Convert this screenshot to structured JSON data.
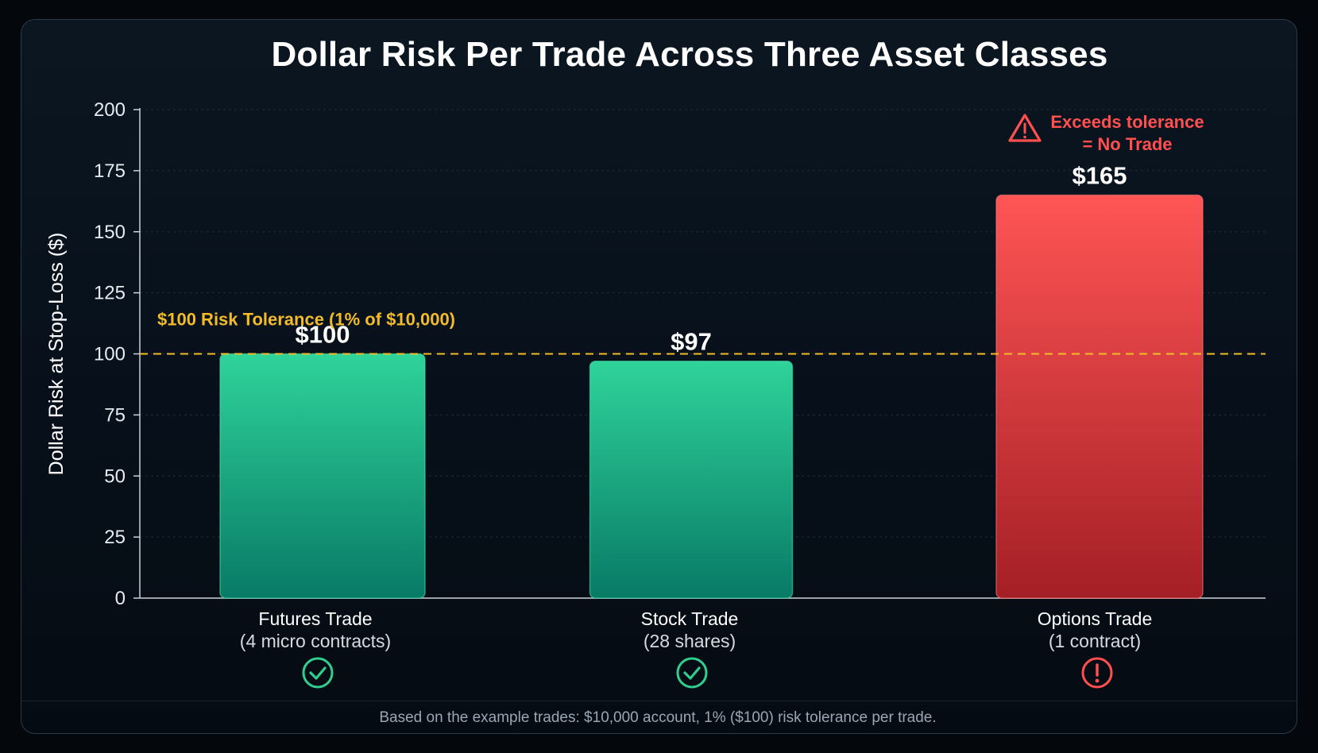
{
  "title": "Dollar Risk Per Trade Across Three Asset Classes",
  "footnote": "Based on the example trades: $10,000 account, 1% ($100) risk tolerance per trade.",
  "colors": {
    "green_top": "#2fd39a",
    "green_bottom": "#087a66",
    "red_top": "#ff5555",
    "red_bottom": "#a41f25",
    "threshold": "#f2bb2a",
    "warning": "#ff4f4f",
    "ok": "#2ecf8f"
  },
  "chart_data": {
    "type": "bar",
    "ylabel": "Dollar Risk at Stop-Loss ($)",
    "ylim": [
      0,
      200
    ],
    "yticks": [
      0,
      25,
      50,
      75,
      100,
      125,
      150,
      175,
      200
    ],
    "grid": true,
    "categories": [
      "Futures Trade",
      "Stock Trade",
      "Options Trade"
    ],
    "sublabels": [
      "(4 micro contracts)",
      "(28 shares)",
      "(1 contract)"
    ],
    "values": [
      100,
      97,
      165
    ],
    "value_labels": [
      "$100",
      "$97",
      "$165"
    ],
    "status": [
      "ok",
      "ok",
      "warning"
    ],
    "status_icons": [
      "check-circle-icon",
      "check-circle-icon",
      "exclamation-circle-icon"
    ],
    "threshold": {
      "value": 100,
      "label": "$100 Risk Tolerance (1% of $10,000)"
    },
    "annotation": {
      "bar_index": 2,
      "icon": "warning-triangle-icon",
      "lines": [
        "Exceeds tolerance",
        "= No Trade"
      ]
    }
  }
}
